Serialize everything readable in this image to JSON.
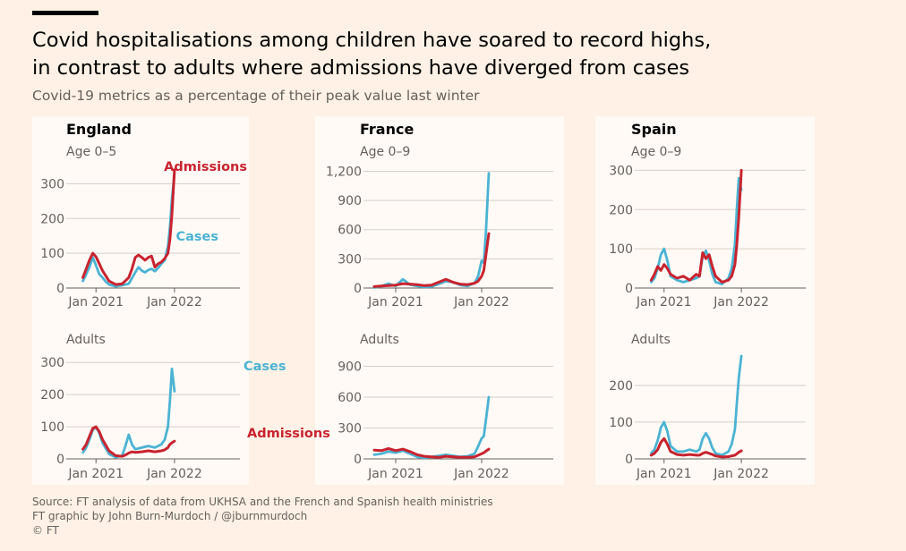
{
  "header": {
    "title_line1": "Covid hospitalisations among children have soared to record highs,",
    "title_line2": "in contrast to adults where admissions have diverged from cases",
    "subtitle": "Covid-19 metrics as a percentage of their peak value last winter"
  },
  "footer": {
    "source": "Source: FT analysis of data from UKHSA and the French and Spanish health ministries",
    "credit": "FT graphic by John Burn-Murdoch / @jburnmurdoch",
    "copyright": "© FT"
  },
  "colors": {
    "background": "#fff1e5",
    "panel": "#fffaf6",
    "cases": "#4bb3d3",
    "admissions": "#c8232f",
    "grid": "#d8cfc6",
    "axis_text": "#66605c",
    "title_text": "#000000"
  },
  "chart_data": [
    {
      "id": "england-children",
      "type": "line",
      "country": "England",
      "group": "Age 0–5",
      "ylim": [
        0,
        350
      ],
      "yticks": [
        0,
        100,
        200,
        300
      ],
      "ytick_labels": [
        "0",
        "100",
        "200",
        "300"
      ],
      "xlim": [
        -2,
        24
      ],
      "xticks": [
        2,
        14
      ],
      "xtick_labels": [
        "Jan 2021",
        "Jan 2022"
      ],
      "series": [
        {
          "name": "Cases",
          "label": "Cases",
          "color_key": "cases",
          "x": [
            0,
            0.5,
            1,
            1.5,
            2,
            2.5,
            3,
            3.5,
            4,
            5,
            6,
            7,
            7.5,
            8,
            8.5,
            9,
            9.5,
            10,
            10.5,
            11,
            11.5,
            12,
            12.5,
            13,
            13.3,
            13.6,
            14
          ],
          "values": [
            20,
            40,
            60,
            88,
            65,
            40,
            30,
            18,
            10,
            5,
            8,
            12,
            28,
            45,
            60,
            50,
            45,
            52,
            55,
            48,
            58,
            70,
            80,
            120,
            175,
            255,
            330
          ]
        },
        {
          "name": "Admissions",
          "label": "Admissions",
          "color_key": "admissions",
          "x": [
            0,
            0.5,
            1,
            1.5,
            2,
            2.5,
            3,
            3.5,
            4,
            5,
            6,
            7,
            7.5,
            8,
            8.5,
            9,
            9.5,
            10,
            10.5,
            11,
            11.5,
            12,
            12.5,
            13,
            13.3,
            13.6,
            14
          ],
          "values": [
            30,
            55,
            80,
            100,
            90,
            70,
            50,
            35,
            20,
            10,
            12,
            30,
            55,
            88,
            95,
            88,
            80,
            88,
            92,
            60,
            70,
            75,
            85,
            100,
            140,
            210,
            340
          ]
        }
      ]
    },
    {
      "id": "france-children",
      "type": "line",
      "country": "France",
      "group": "Age 0–9",
      "ylim": [
        0,
        1250
      ],
      "yticks": [
        0,
        300,
        600,
        900,
        1200
      ],
      "ytick_labels": [
        "0",
        "300",
        "600",
        "900",
        "1,200"
      ],
      "xlim": [
        -2,
        24
      ],
      "xticks": [
        2,
        14
      ],
      "xtick_labels": [
        "Jan 2021",
        "Jan 2022"
      ],
      "series": [
        {
          "name": "Cases",
          "label": "",
          "color_key": "cases",
          "x": [
            -1,
            0,
            1,
            2,
            3,
            4,
            5,
            6,
            7,
            8,
            9,
            10,
            11,
            12,
            13,
            13.5,
            14,
            14.3,
            14.6,
            15
          ],
          "values": [
            5,
            20,
            45,
            20,
            90,
            35,
            20,
            10,
            15,
            40,
            70,
            60,
            30,
            20,
            50,
            120,
            280,
            260,
            580,
            1180
          ]
        },
        {
          "name": "Admissions",
          "label": "",
          "color_key": "admissions",
          "x": [
            -1,
            0,
            1,
            2,
            3,
            4,
            5,
            6,
            7,
            8,
            9,
            10,
            11,
            12,
            13,
            13.5,
            14,
            14.3,
            14.6,
            15
          ],
          "values": [
            15,
            20,
            25,
            30,
            45,
            40,
            35,
            25,
            30,
            60,
            90,
            60,
            40,
            35,
            50,
            70,
            120,
            180,
            340,
            560
          ]
        }
      ]
    },
    {
      "id": "spain-children",
      "type": "line",
      "country": "Spain",
      "group": "Age 0–9",
      "ylim": [
        0,
        310
      ],
      "yticks": [
        0,
        100,
        200,
        300
      ],
      "ytick_labels": [
        "0",
        "100",
        "200",
        "300"
      ],
      "xlim": [
        -2,
        24
      ],
      "xticks": [
        2,
        14
      ],
      "xtick_labels": [
        "Jan 2021",
        "Jan 2022"
      ],
      "series": [
        {
          "name": "Cases",
          "label": "",
          "color_key": "cases",
          "x": [
            0,
            0.5,
            1,
            1.5,
            2,
            2.5,
            3,
            4,
            5,
            6,
            7,
            7.5,
            8,
            8.5,
            9,
            9.5,
            10,
            11,
            12,
            12.5,
            13,
            13.3,
            13.6,
            14
          ],
          "values": [
            15,
            25,
            50,
            85,
            100,
            70,
            30,
            20,
            15,
            20,
            25,
            30,
            80,
            95,
            70,
            35,
            15,
            10,
            25,
            50,
            110,
            200,
            280,
            250
          ]
        },
        {
          "name": "Admissions",
          "label": "",
          "color_key": "admissions",
          "x": [
            0,
            0.5,
            1,
            1.5,
            2,
            2.5,
            3,
            4,
            5,
            6,
            7,
            7.5,
            8,
            8.5,
            9,
            9.5,
            10,
            11,
            12,
            12.5,
            13,
            13.3,
            13.6,
            14
          ],
          "values": [
            20,
            35,
            55,
            45,
            60,
            50,
            35,
            25,
            30,
            20,
            35,
            30,
            90,
            75,
            85,
            55,
            30,
            15,
            20,
            30,
            60,
            110,
            180,
            300
          ]
        }
      ]
    },
    {
      "id": "england-adults",
      "type": "line",
      "country": "",
      "group": "Adults",
      "ylim": [
        0,
        320
      ],
      "yticks": [
        0,
        100,
        200,
        300
      ],
      "ytick_labels": [
        "0",
        "100",
        "200",
        "300"
      ],
      "xlim": [
        -2,
        24
      ],
      "xticks": [
        2,
        14
      ],
      "xtick_labels": [
        "Jan 2021",
        "Jan 2022"
      ],
      "series": [
        {
          "name": "Cases",
          "label": "Cases",
          "color_key": "cases",
          "x": [
            0,
            0.5,
            1,
            1.5,
            2,
            2.5,
            3,
            4,
            5,
            6,
            6.5,
            7,
            7.5,
            8,
            9,
            10,
            11,
            12,
            12.5,
            13,
            13.3,
            13.6,
            14
          ],
          "values": [
            20,
            35,
            60,
            90,
            100,
            80,
            50,
            15,
            5,
            10,
            40,
            75,
            45,
            30,
            35,
            40,
            35,
            45,
            60,
            100,
            180,
            280,
            210
          ]
        },
        {
          "name": "Admissions",
          "label": "Admissions",
          "color_key": "admissions",
          "x": [
            0,
            0.5,
            1,
            1.5,
            2,
            2.5,
            3,
            4,
            5,
            6,
            6.5,
            7,
            7.5,
            8,
            9,
            10,
            11,
            12,
            12.5,
            13,
            13.3,
            13.6,
            14
          ],
          "values": [
            30,
            45,
            70,
            95,
            100,
            85,
            60,
            25,
            10,
            8,
            12,
            18,
            22,
            20,
            22,
            25,
            22,
            25,
            28,
            35,
            45,
            50,
            55
          ]
        }
      ]
    },
    {
      "id": "france-adults",
      "type": "line",
      "country": "",
      "group": "Adults",
      "ylim": [
        0,
        1000
      ],
      "yticks": [
        0,
        300,
        600,
        900
      ],
      "ytick_labels": [
        "0",
        "300",
        "600",
        "900"
      ],
      "xlim": [
        -2,
        24
      ],
      "xticks": [
        2,
        14
      ],
      "xtick_labels": [
        "Jan 2021",
        "Jan 2022"
      ],
      "series": [
        {
          "name": "Cases",
          "label": "",
          "color_key": "cases",
          "x": [
            -1,
            0,
            1,
            2,
            3,
            4,
            5,
            6,
            7,
            8,
            9,
            10,
            11,
            12,
            13,
            13.5,
            14,
            14.3,
            14.6,
            15
          ],
          "values": [
            40,
            50,
            70,
            60,
            80,
            50,
            20,
            10,
            20,
            30,
            40,
            30,
            20,
            25,
            50,
            120,
            200,
            220,
            380,
            600
          ]
        },
        {
          "name": "Admissions",
          "label": "",
          "color_key": "admissions",
          "x": [
            -1,
            0,
            1,
            2,
            3,
            4,
            5,
            6,
            7,
            8,
            9,
            10,
            11,
            12,
            13,
            13.5,
            14,
            14.3,
            14.6,
            15
          ],
          "values": [
            85,
            80,
            100,
            80,
            95,
            70,
            40,
            25,
            20,
            15,
            25,
            20,
            15,
            15,
            20,
            35,
            50,
            60,
            75,
            95
          ]
        }
      ]
    },
    {
      "id": "spain-adults",
      "type": "line",
      "country": "",
      "group": "Adults",
      "ylim": [
        0,
        280
      ],
      "yticks": [
        0,
        100,
        200
      ],
      "ytick_labels": [
        "0",
        "100",
        "200"
      ],
      "xlim": [
        -2,
        24
      ],
      "xticks": [
        2,
        14
      ],
      "xtick_labels": [
        "Jan 2021",
        "Jan 2022"
      ],
      "series": [
        {
          "name": "Cases",
          "label": "",
          "color_key": "cases",
          "x": [
            0,
            0.5,
            1,
            1.5,
            2,
            2.5,
            3,
            4,
            5,
            6,
            7,
            7.5,
            8,
            8.5,
            9,
            9.5,
            10,
            11,
            12,
            12.5,
            13,
            13.3,
            13.6,
            14
          ],
          "values": [
            15,
            25,
            50,
            85,
            100,
            75,
            35,
            20,
            20,
            25,
            20,
            25,
            55,
            70,
            55,
            30,
            15,
            10,
            20,
            40,
            80,
            150,
            220,
            280
          ]
        },
        {
          "name": "Admissions",
          "label": "",
          "color_key": "admissions",
          "x": [
            0,
            0.5,
            1,
            1.5,
            2,
            2.5,
            3,
            4,
            5,
            6,
            7,
            7.5,
            8,
            8.5,
            9,
            9.5,
            10,
            11,
            12,
            12.5,
            13,
            13.3,
            13.6,
            14
          ],
          "values": [
            10,
            15,
            25,
            45,
            55,
            40,
            20,
            12,
            10,
            12,
            10,
            10,
            15,
            18,
            15,
            12,
            8,
            5,
            6,
            8,
            10,
            14,
            18,
            22
          ]
        }
      ]
    }
  ]
}
